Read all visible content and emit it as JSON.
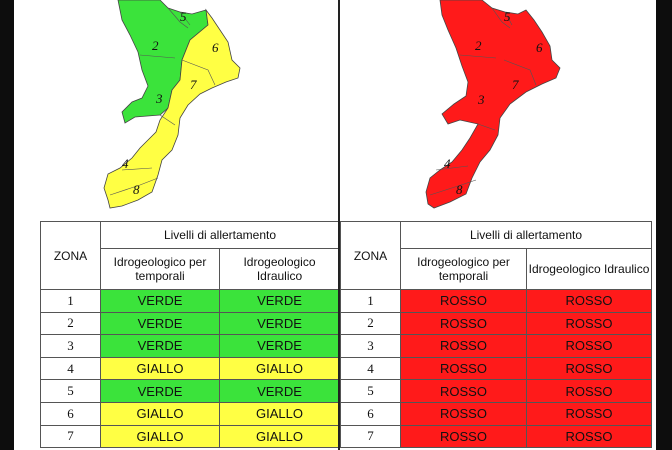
{
  "colors": {
    "green": "#3be33b",
    "yellow": "#ffff44",
    "red": "#ff1a1a"
  },
  "left": {
    "zona_label": "ZONA",
    "header": "Livelli di allertamento",
    "col1": "Idrogeologico per temporali",
    "col2": "Idrogeologico Idraulico",
    "map_labels": [
      "5",
      "2",
      "6",
      "7",
      "3",
      "4",
      "8"
    ],
    "rows": [
      {
        "zona": "1",
        "a": "VERDE",
        "b": "VERDE",
        "color": "green"
      },
      {
        "zona": "2",
        "a": "VERDE",
        "b": "VERDE",
        "color": "green"
      },
      {
        "zona": "3",
        "a": "VERDE",
        "b": "VERDE",
        "color": "green"
      },
      {
        "zona": "4",
        "a": "GIALLO",
        "b": "GIALLO",
        "color": "yellow"
      },
      {
        "zona": "5",
        "a": "VERDE",
        "b": "VERDE",
        "color": "green"
      },
      {
        "zona": "6",
        "a": "GIALLO",
        "b": "GIALLO",
        "color": "yellow"
      },
      {
        "zona": "7",
        "a": "GIALLO",
        "b": "GIALLO",
        "color": "yellow"
      }
    ]
  },
  "right": {
    "zona_label": "ZONA",
    "header": "Livelli di allertamento",
    "col1": "Idrogeologico per temporali",
    "col2": "Idrogeologico Idraulico",
    "map_labels": [
      "5",
      "2",
      "6",
      "7",
      "3",
      "4",
      "8"
    ],
    "rows": [
      {
        "zona": "1",
        "a": "ROSSO",
        "b": "ROSSO",
        "color": "red"
      },
      {
        "zona": "2",
        "a": "ROSSO",
        "b": "ROSSO",
        "color": "red"
      },
      {
        "zona": "3",
        "a": "ROSSO",
        "b": "ROSSO",
        "color": "red"
      },
      {
        "zona": "4",
        "a": "ROSSO",
        "b": "ROSSO",
        "color": "red"
      },
      {
        "zona": "5",
        "a": "ROSSO",
        "b": "ROSSO",
        "color": "red"
      },
      {
        "zona": "6",
        "a": "ROSSO",
        "b": "ROSSO",
        "color": "red"
      },
      {
        "zona": "7",
        "a": "ROSSO",
        "b": "ROSSO",
        "color": "red"
      }
    ]
  }
}
